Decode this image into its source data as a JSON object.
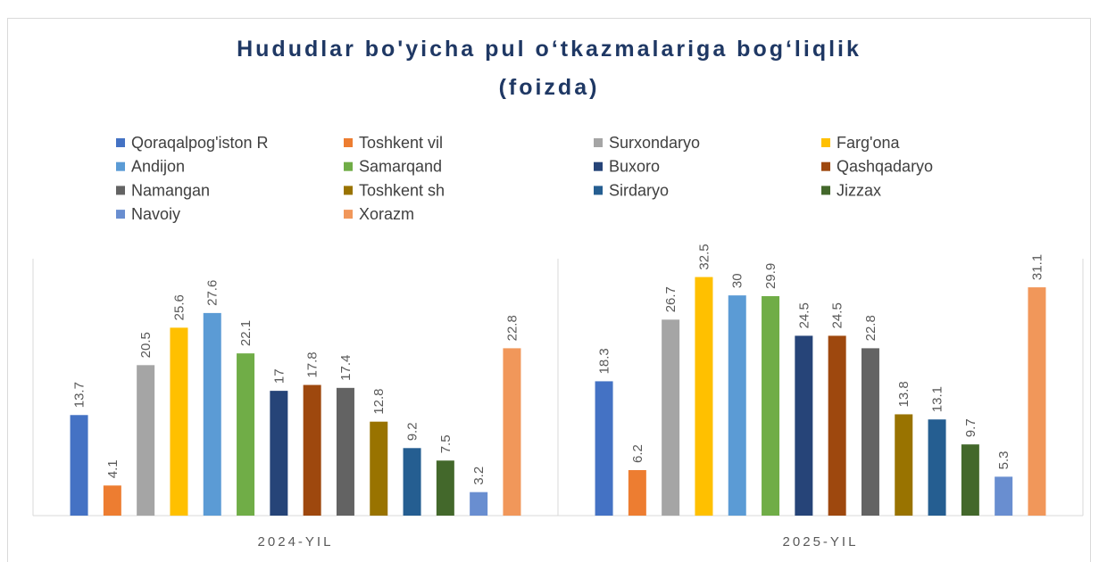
{
  "chart_data": {
    "type": "bar",
    "title": "Hududlar bo'yicha pul o‘tkazmalariga bog‘liqlik (foizda)",
    "categories": [
      "2024-YIL",
      "2025-YIL"
    ],
    "ylim": [
      0,
      35
    ],
    "series": [
      {
        "name": "Qoraqalpog'iston R",
        "color": "#4472c4",
        "values": [
          13.7,
          18.3
        ]
      },
      {
        "name": "Toshkent vil",
        "color": "#ed7d31",
        "values": [
          4.1,
          6.2
        ]
      },
      {
        "name": "Surxondaryo",
        "color": "#a5a5a5",
        "values": [
          20.5,
          26.7
        ]
      },
      {
        "name": "Farg'ona",
        "color": "#ffc000",
        "values": [
          25.6,
          32.5
        ]
      },
      {
        "name": "Andijon",
        "color": "#5b9bd5",
        "values": [
          27.6,
          30
        ]
      },
      {
        "name": "Samarqand",
        "color": "#70ad47",
        "values": [
          22.1,
          29.9
        ]
      },
      {
        "name": "Buxoro",
        "color": "#264478",
        "values": [
          17,
          24.5
        ]
      },
      {
        "name": "Qashqadaryo",
        "color": "#9e480e",
        "values": [
          17.8,
          24.5
        ]
      },
      {
        "name": "Namangan",
        "color": "#636363",
        "values": [
          17.4,
          22.8
        ]
      },
      {
        "name": "Toshkent sh",
        "color": "#997300",
        "values": [
          12.8,
          13.8
        ]
      },
      {
        "name": "Sirdaryo",
        "color": "#255e91",
        "values": [
          9.2,
          13.1
        ]
      },
      {
        "name": "Jizzax",
        "color": "#43682b",
        "values": [
          7.5,
          9.7
        ]
      },
      {
        "name": "Navoiy",
        "color": "#698ed0",
        "values": [
          3.2,
          5.3
        ]
      },
      {
        "name": "Xorazm",
        "color": "#f1975a",
        "values": [
          22.8,
          31.1
        ]
      }
    ]
  }
}
